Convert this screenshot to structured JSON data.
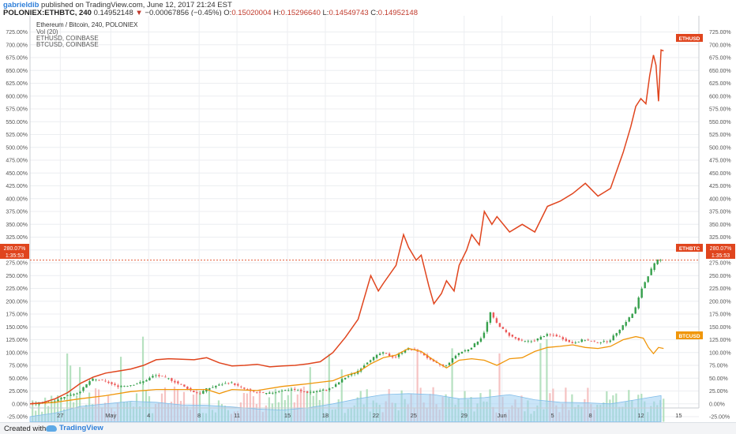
{
  "header": {
    "author": "gabrieldib",
    "published": "published on TradingView.com, June 12, 2017 21:24 EST",
    "symbol": "POLONIEX:ETHBTC, 240",
    "last": "0.14952148",
    "change_arrow": "▼",
    "change": "−0.00067856 (−0.45%)",
    "open_label": "O:",
    "open": "0.15020004",
    "high_label": "H:",
    "high": "0.15296640",
    "low_label": "L:",
    "low": "0.14549743",
    "close_label": "C:",
    "close": "0.14952148"
  },
  "legend": {
    "title": "Ethereum / Bitcoin, 240, POLONIEX",
    "vol": "Vol (20)",
    "eth": "ETHUSD, COINBASE",
    "btc": "BTCUSD, COINBASE"
  },
  "badges": {
    "ethusd": "ETHUSD",
    "ethbtc": "ETHBTC",
    "btcusd": "BTCUSD",
    "price": "280.07%",
    "timer": "1:35:53"
  },
  "footer": {
    "made": "Created with",
    "brand": "TradingView",
    "icon": "tradingview-cloud-icon"
  },
  "colors": {
    "ethusd": "#e0451e",
    "btcusd": "#f0960a",
    "up": "#36a04c",
    "down": "#ec5a5a",
    "volume_area": "#9ecff2",
    "price_line": "#e0451e"
  },
  "chart_data": {
    "type": "line",
    "y_unit": "% change",
    "ylim": [
      -35,
      730
    ],
    "y_ticks": [
      "-25.00%",
      "0.00%",
      "25.00%",
      "50.00%",
      "75.00%",
      "100.00%",
      "125.00%",
      "150.00%",
      "175.00%",
      "200.00%",
      "225.00%",
      "250.00%",
      "275.00%",
      "300.00%",
      "325.00%",
      "350.00%",
      "375.00%",
      "400.00%",
      "425.00%",
      "450.00%",
      "475.00%",
      "500.00%",
      "525.00%",
      "550.00%",
      "575.00%",
      "600.00%",
      "625.00%",
      "650.00%",
      "675.00%",
      "700.00%",
      "725.00%"
    ],
    "x_ticks": [
      {
        "label": "27",
        "x": 2.4
      },
      {
        "label": "May",
        "x": 6.4
      },
      {
        "label": "4",
        "x": 9.4
      },
      {
        "label": "8",
        "x": 13.4
      },
      {
        "label": "11",
        "x": 16.4
      },
      {
        "label": "15",
        "x": 20.4
      },
      {
        "label": "18",
        "x": 23.4
      },
      {
        "label": "22",
        "x": 27.4
      },
      {
        "label": "25",
        "x": 30.4
      },
      {
        "label": "29",
        "x": 34.4
      },
      {
        "label": "Jun",
        "x": 37.4
      },
      {
        "label": "5",
        "x": 41.4
      },
      {
        "label": "8",
        "x": 44.4
      },
      {
        "label": "12",
        "x": 48.4
      },
      {
        "label": "15",
        "x": 51.4
      }
    ],
    "xlim": [
      0,
      53
    ],
    "grid": true,
    "price_line_value": 280.07,
    "series": [
      {
        "name": "ETHUSD",
        "points": [
          [
            0,
            0
          ],
          [
            1,
            2
          ],
          [
            2,
            10
          ],
          [
            3,
            22
          ],
          [
            4,
            40
          ],
          [
            5,
            52
          ],
          [
            6,
            60
          ],
          [
            7,
            64
          ],
          [
            8,
            68
          ],
          [
            9,
            75
          ],
          [
            10,
            86
          ],
          [
            11,
            88
          ],
          [
            12,
            87
          ],
          [
            13,
            86
          ],
          [
            14,
            90
          ],
          [
            15,
            80
          ],
          [
            16,
            74
          ],
          [
            17,
            75
          ],
          [
            18,
            77
          ],
          [
            19,
            72
          ],
          [
            20,
            74
          ],
          [
            21,
            75
          ],
          [
            22,
            78
          ],
          [
            23,
            82
          ],
          [
            24,
            100
          ],
          [
            25,
            130
          ],
          [
            26,
            165
          ],
          [
            27,
            250
          ],
          [
            27.6,
            220
          ],
          [
            28,
            235
          ],
          [
            29,
            270
          ],
          [
            29.6,
            330
          ],
          [
            30,
            305
          ],
          [
            30.6,
            280
          ],
          [
            31,
            290
          ],
          [
            31.6,
            230
          ],
          [
            32,
            195
          ],
          [
            32.6,
            215
          ],
          [
            33,
            240
          ],
          [
            33.6,
            220
          ],
          [
            34,
            270
          ],
          [
            34.6,
            300
          ],
          [
            35,
            330
          ],
          [
            35.6,
            310
          ],
          [
            36,
            375
          ],
          [
            36.6,
            350
          ],
          [
            37,
            365
          ],
          [
            38,
            335
          ],
          [
            39,
            350
          ],
          [
            40,
            335
          ],
          [
            41,
            385
          ],
          [
            42,
            395
          ],
          [
            43,
            410
          ],
          [
            44,
            430
          ],
          [
            45,
            405
          ],
          [
            46,
            420
          ],
          [
            47,
            490
          ],
          [
            47.6,
            540
          ],
          [
            48,
            580
          ],
          [
            48.4,
            595
          ],
          [
            48.8,
            585
          ],
          [
            49.1,
            640
          ],
          [
            49.4,
            680
          ],
          [
            49.6,
            660
          ],
          [
            49.8,
            590
          ],
          [
            50.0,
            690
          ],
          [
            50.2,
            688
          ]
        ]
      },
      {
        "name": "BTCUSD",
        "points": [
          [
            0,
            0
          ],
          [
            2,
            3
          ],
          [
            4,
            10
          ],
          [
            6,
            16
          ],
          [
            8,
            24
          ],
          [
            10,
            28
          ],
          [
            12,
            28
          ],
          [
            14,
            28
          ],
          [
            15,
            20
          ],
          [
            16,
            28
          ],
          [
            18,
            26
          ],
          [
            20,
            34
          ],
          [
            22,
            39
          ],
          [
            23,
            42
          ],
          [
            24,
            45
          ],
          [
            25,
            55
          ],
          [
            26,
            62
          ],
          [
            27,
            78
          ],
          [
            28,
            90
          ],
          [
            29,
            95
          ],
          [
            30,
            108
          ],
          [
            31,
            102
          ],
          [
            32,
            85
          ],
          [
            33,
            70
          ],
          [
            34,
            85
          ],
          [
            35,
            88
          ],
          [
            36,
            85
          ],
          [
            37,
            75
          ],
          [
            38,
            88
          ],
          [
            39,
            90
          ],
          [
            40,
            102
          ],
          [
            41,
            110
          ],
          [
            42,
            112
          ],
          [
            43,
            115
          ],
          [
            44,
            110
          ],
          [
            45,
            108
          ],
          [
            46,
            112
          ],
          [
            47,
            125
          ],
          [
            48,
            131
          ],
          [
            48.6,
            128
          ],
          [
            49,
            110
          ],
          [
            49.4,
            98
          ],
          [
            49.8,
            110
          ],
          [
            50.2,
            108
          ]
        ]
      },
      {
        "name": "ETHBTC",
        "points": [
          [
            0,
            0
          ],
          [
            1,
            1
          ],
          [
            2,
            5
          ],
          [
            3,
            16
          ],
          [
            4,
            22
          ],
          [
            5,
            48
          ],
          [
            6,
            45
          ],
          [
            7,
            34
          ],
          [
            8,
            36
          ],
          [
            9,
            42
          ],
          [
            10,
            56
          ],
          [
            11,
            50
          ],
          [
            12,
            38
          ],
          [
            13,
            24
          ],
          [
            13.6,
            20
          ],
          [
            14,
            28
          ],
          [
            15,
            36
          ],
          [
            16,
            42
          ],
          [
            17,
            30
          ],
          [
            18,
            22
          ],
          [
            19,
            20
          ],
          [
            20,
            26
          ],
          [
            21,
            28
          ],
          [
            22,
            22
          ],
          [
            23,
            25
          ],
          [
            24,
            30
          ],
          [
            25,
            50
          ],
          [
            26,
            62
          ],
          [
            27,
            85
          ],
          [
            28,
            100
          ],
          [
            29,
            90
          ],
          [
            30,
            108
          ],
          [
            31,
            102
          ],
          [
            32,
            82
          ],
          [
            33,
            72
          ],
          [
            34,
            98
          ],
          [
            35,
            108
          ],
          [
            36,
            132
          ],
          [
            36.6,
            178
          ],
          [
            37,
            160
          ],
          [
            38,
            135
          ],
          [
            39,
            122
          ],
          [
            40,
            122
          ],
          [
            41,
            135
          ],
          [
            42,
            132
          ],
          [
            43,
            118
          ],
          [
            44,
            125
          ],
          [
            45,
            120
          ],
          [
            46,
            122
          ],
          [
            47,
            150
          ],
          [
            48,
            180
          ],
          [
            48.6,
            225
          ],
          [
            49,
            245
          ],
          [
            49.4,
            265
          ],
          [
            49.8,
            280
          ]
        ]
      },
      {
        "name": "Vol (20)",
        "points": [
          [
            0,
            -25
          ],
          [
            2,
            -18
          ],
          [
            4,
            -5
          ],
          [
            6,
            0
          ],
          [
            8,
            5
          ],
          [
            10,
            3
          ],
          [
            12,
            -2
          ],
          [
            14,
            -3
          ],
          [
            16,
            -6
          ],
          [
            18,
            -10
          ],
          [
            20,
            -12
          ],
          [
            22,
            -8
          ],
          [
            24,
            0
          ],
          [
            26,
            10
          ],
          [
            28,
            18
          ],
          [
            30,
            20
          ],
          [
            32,
            18
          ],
          [
            34,
            10
          ],
          [
            36,
            12
          ],
          [
            38,
            18
          ],
          [
            40,
            8
          ],
          [
            42,
            3
          ],
          [
            44,
            2
          ],
          [
            46,
            0
          ],
          [
            48,
            8
          ],
          [
            49,
            12
          ],
          [
            50,
            16
          ]
        ]
      }
    ]
  }
}
